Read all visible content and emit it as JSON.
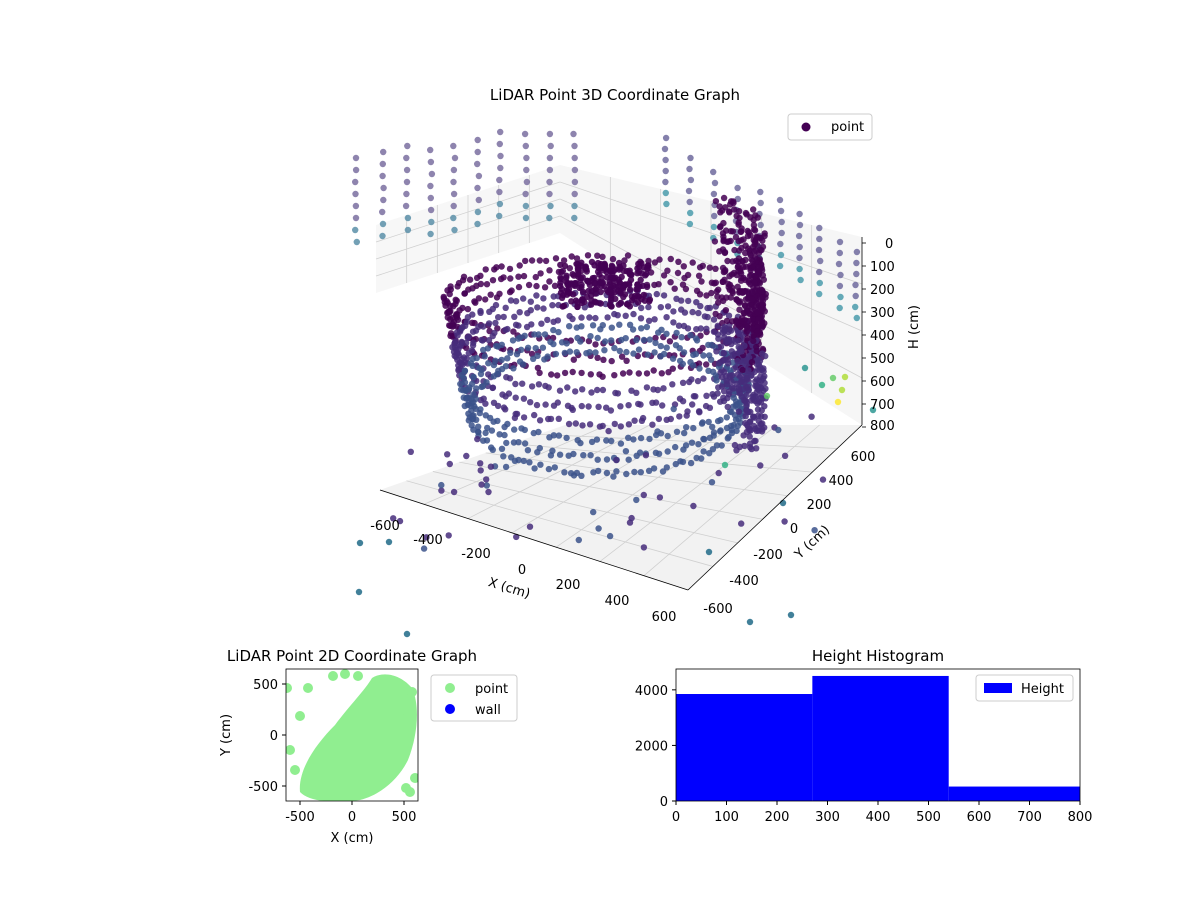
{
  "chart_data": [
    {
      "type": "scatter3d",
      "title": "LiDAR Point 3D Coordinate Graph",
      "xlabel": "X (cm)",
      "ylabel": "Y (cm)",
      "zlabel": "H (cm)",
      "xticks": [
        "-600",
        "-400",
        "-200",
        "0",
        "200",
        "400",
        "600"
      ],
      "yticks": [
        "-600",
        "-400",
        "-200",
        "0",
        "200",
        "400",
        "600"
      ],
      "zticks": [
        "0",
        "100",
        "200",
        "300",
        "400",
        "500",
        "600",
        "700",
        "800"
      ],
      "xlim": [
        -650,
        650
      ],
      "ylim": [
        -650,
        650
      ],
      "zlim": [
        0,
        800
      ],
      "z_inverted": true,
      "legend": [
        {
          "label": "point",
          "color": "#440154"
        }
      ],
      "legend_placement": "top-right",
      "colormap": "viridis",
      "grid": true
    },
    {
      "type": "scatter",
      "title": "LiDAR Point 2D Coordinate Graph",
      "xlabel": "X (cm)",
      "ylabel": "Y (cm)",
      "xticks": [
        "-500",
        "0",
        "500"
      ],
      "yticks": [
        "500",
        "0",
        "-500"
      ],
      "xlim": [
        -650,
        650
      ],
      "ylim": [
        -650,
        650
      ],
      "legend": [
        {
          "label": "point",
          "color": "#90ee90"
        },
        {
          "label": "wall",
          "color": "#0000ff"
        }
      ],
      "legend_placement": "outside-right",
      "grid": false
    },
    {
      "type": "bar",
      "title": "Height Histogram",
      "series": [
        {
          "name": "Height",
          "bins": [
            [
              0,
              270
            ],
            [
              270,
              540
            ],
            [
              540,
              810
            ]
          ],
          "values": [
            3850,
            4500,
            520
          ]
        }
      ],
      "xticks": [
        "0",
        "100",
        "200",
        "300",
        "400",
        "500",
        "600",
        "700",
        "800"
      ],
      "yticks": [
        "0",
        "2000",
        "4000"
      ],
      "xlim": [
        0,
        800
      ],
      "ylim": [
        0,
        4750
      ],
      "color": "#0000ff",
      "legend": [
        {
          "label": "Height",
          "color": "#0000ff"
        }
      ],
      "legend_placement": "top-right",
      "grid": false
    }
  ]
}
